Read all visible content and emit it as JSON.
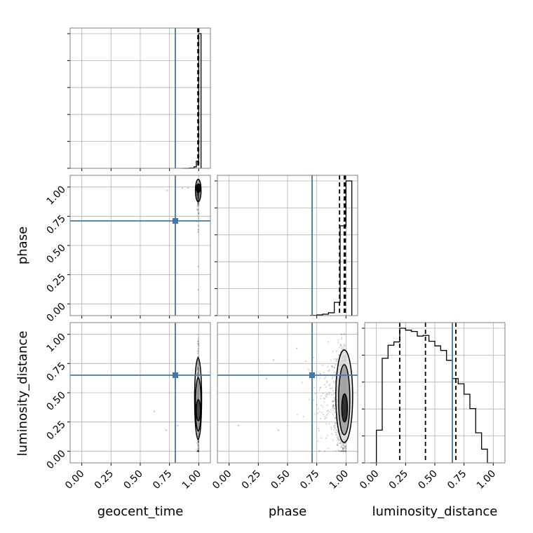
{
  "colors": {
    "truth": "#4477aa",
    "contour": "#000000",
    "grid": "#b0b0b0",
    "axes": "#808080"
  },
  "chart_data": {
    "type": "corner",
    "parameters": [
      "geocent_time",
      "phase",
      "luminosity_distance"
    ],
    "axis_labels": {
      "geocent_time": "geocent_time",
      "phase": "phase",
      "luminosity_distance": "luminosity_distance"
    },
    "tick_labels": [
      "0.00",
      "0.25",
      "0.50",
      "0.75",
      "1.00"
    ],
    "tick_values": [
      0,
      0.25,
      0.5,
      0.75,
      1.0
    ],
    "range": [
      -0.1,
      1.1
    ],
    "truths": {
      "geocent_time": 0.8,
      "phase": 0.71,
      "luminosity_distance": 0.65
    },
    "quantiles": {
      "geocent_time": [
        0.993,
        0.998,
        1.0
      ],
      "phase": [
        0.945,
        0.985,
        0.995
      ],
      "luminosity_distance": [
        0.2,
        0.42,
        0.68
      ]
    },
    "histograms": {
      "geocent_time": {
        "bin_edges": [
          0.86,
          0.88,
          0.9,
          0.92,
          0.94,
          0.96,
          0.98,
          1.0,
          1.02
        ],
        "counts": [
          0,
          0,
          0,
          1,
          1,
          5,
          25,
          470
        ]
      },
      "phase": {
        "bin_edges": [
          0.7,
          0.75,
          0.8,
          0.85,
          0.9,
          0.95,
          1.0,
          1.05
        ],
        "counts": [
          0.5,
          1.5,
          3,
          6,
          28,
          190,
          285
        ]
      },
      "luminosity_distance": {
        "bin_edges": [
          -0.05,
          0.0,
          0.05,
          0.1,
          0.15,
          0.2,
          0.25,
          0.3,
          0.35,
          0.4,
          0.45,
          0.5,
          0.55,
          0.6,
          0.65,
          0.7,
          0.75,
          0.8,
          0.85,
          0.9,
          0.95,
          1.0
        ],
        "counts": [
          0,
          5,
          16,
          18,
          18.5,
          20.6,
          20.3,
          20.1,
          19.4,
          19.5,
          18.6,
          17.9,
          17.2,
          15.7,
          12.9,
          12.1,
          10.5,
          8.3,
          4.6,
          2.1,
          0
        ]
      }
    },
    "grid": true
  }
}
